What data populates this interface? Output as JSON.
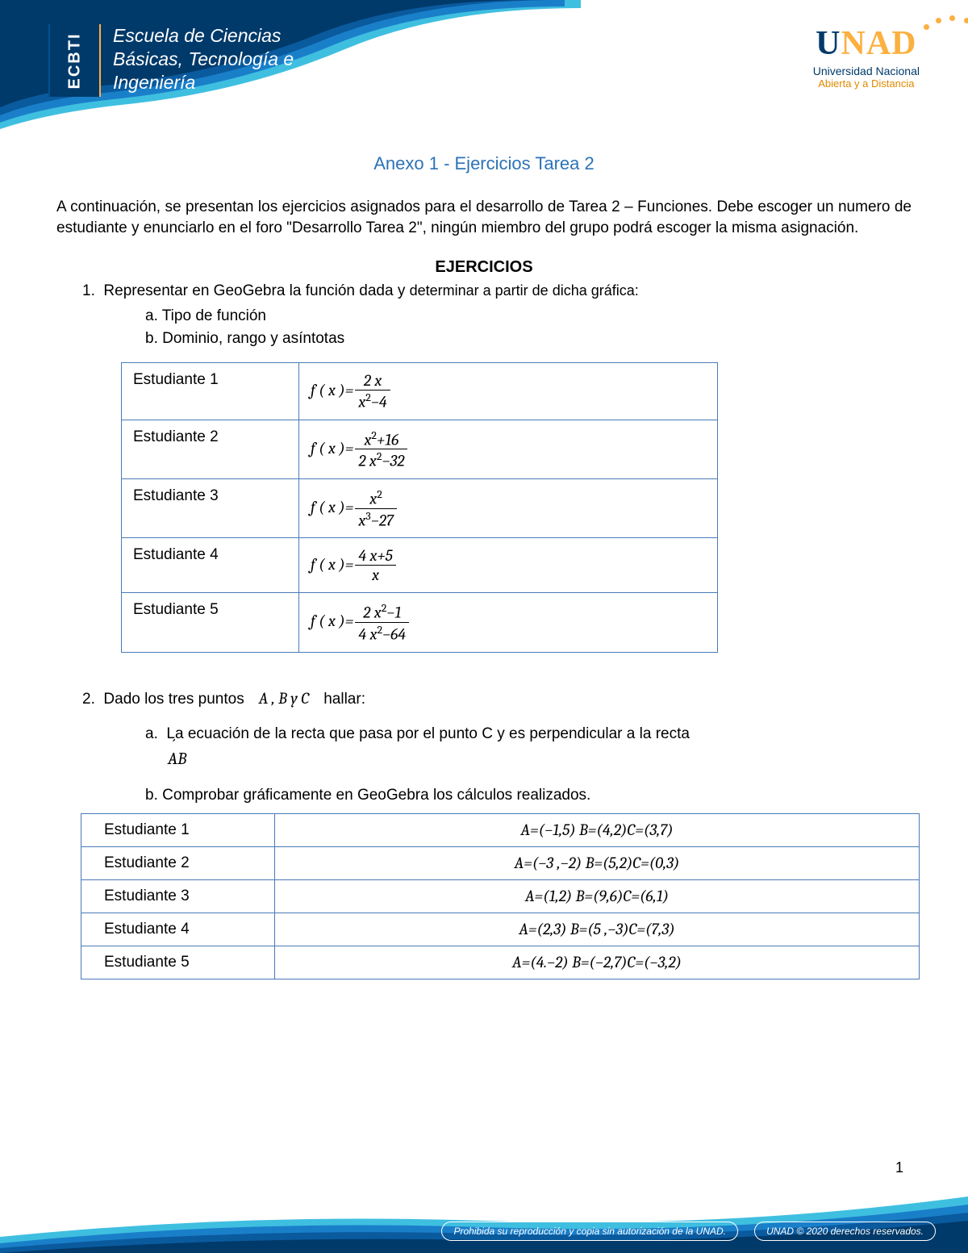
{
  "header": {
    "ecbti": "ECBTI",
    "school_line1": "Escuela de Ciencias",
    "school_line2": "Básicas, Tecnología e",
    "school_line3": "Ingeniería",
    "logo_prefix": "U",
    "logo_rest": "NAD",
    "logo_sub1": "Universidad Nacional",
    "logo_sub2": "Abierta y a Distancia",
    "banner_colors": {
      "dark": "#003a6a",
      "mid": "#0a5a9e",
      "light": "#1a7fc9",
      "cyan": "#3fbfe0",
      "accent": "#fbb040"
    }
  },
  "title": "Anexo 1 - Ejercicios Tarea 2",
  "intro": "A continuación, se presentan los ejercicios asignados para el desarrollo de Tarea 2 – Funciones. Debe escoger un numero de estudiante y enunciarlo en el foro \"Desarrollo Tarea 2\", ningún miembro del grupo podrá escoger la misma asignación.",
  "ejercicios_heading": "EJERCICIOS",
  "ex1": {
    "num": "1.",
    "text_a": "Representar en GeoGebra la función dada y ",
    "text_b": "determinar a partir de dicha gráfica:",
    "sub_a": "a.  Tipo de función",
    "sub_b": "b.  Dominio, rango y asíntotas",
    "rows": [
      {
        "label": "Estudiante 1",
        "fx_prefix": "f ( x )=",
        "num": "2 x",
        "den": "x²−4"
      },
      {
        "label": "Estudiante 2",
        "fx_prefix": "f ( x )=",
        "num": "x²+16",
        "den": "2 x²−32"
      },
      {
        "label": "Estudiante 3",
        "fx_prefix": "f ( x )=",
        "num": "x²",
        "den": "x³−27"
      },
      {
        "label": "Estudiante 4",
        "fx_prefix": "f ( x )=",
        "num": "4 x+5",
        "den": "x"
      },
      {
        "label": "Estudiante 5",
        "fx_prefix": "f ( x )=",
        "num": "2 x²−1",
        "den": "4 x²−64"
      }
    ]
  },
  "ex2": {
    "num": "2.",
    "text": "Dado los tres puntos",
    "abc": "A , B y C",
    "hallar": "hallar:",
    "sub_a_prefix": "a.",
    "sub_a": "La ecuación de la recta que pasa por el punto C y es perpendicular a la recta",
    "ab": "AB",
    "sub_b": "b.  Comprobar gráficamente en GeoGebra los cálculos realizados.",
    "rows": [
      {
        "label": "Estudiante 1",
        "pts": "A=(−1,5) B=(4,2)C=(3,7)"
      },
      {
        "label": "Estudiante 2",
        "pts": "A=(−3 ,−2) B=(5,2)C=(0,3)"
      },
      {
        "label": "Estudiante 3",
        "pts": "A=(1,2) B=(9,6)C=(6,1)"
      },
      {
        "label": "Estudiante 4",
        "pts": "A=(2,3) B=(5 ,−3)C=(7,3)"
      },
      {
        "label": "Estudiante 5",
        "pts": "A=(4.−2) B=(−2,7)C=(−3,2)"
      }
    ]
  },
  "page_number": "1",
  "footer": {
    "pill1": "Prohibida su reproducción y copia sin autorización de la UNAD.",
    "pill2": "UNAD © 2020 derechos reservados."
  }
}
